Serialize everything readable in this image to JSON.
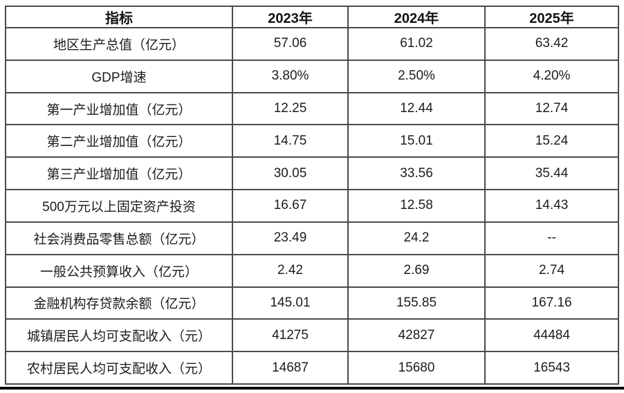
{
  "table": {
    "columns": [
      "指标",
      "2023年",
      "2024年",
      "2025年"
    ],
    "rows": [
      {
        "indicator": "地区生产总值（亿元）",
        "values": [
          "57.06",
          "61.02",
          "63.42"
        ]
      },
      {
        "indicator": "GDP增速",
        "values": [
          "3.80%",
          "2.50%",
          "4.20%"
        ]
      },
      {
        "indicator": "第一产业增加值（亿元）",
        "values": [
          "12.25",
          "12.44",
          "12.74"
        ]
      },
      {
        "indicator": "第二产业增加值（亿元）",
        "values": [
          "14.75",
          "15.01",
          "15.24"
        ]
      },
      {
        "indicator": "第三产业增加值（亿元）",
        "values": [
          "30.05",
          "33.56",
          "35.44"
        ]
      },
      {
        "indicator": "500万元以上固定资产投资",
        "values": [
          "16.67",
          "12.58",
          "14.43"
        ]
      },
      {
        "indicator": "社会消费品零售总额（亿元）",
        "values": [
          "23.49",
          "24.2",
          "--"
        ]
      },
      {
        "indicator": "一般公共预算收入（亿元）",
        "values": [
          "2.42",
          "2.69",
          "2.74"
        ]
      },
      {
        "indicator": "金融机构存贷款余额（亿元）",
        "values": [
          "145.01",
          "155.85",
          "167.16"
        ]
      },
      {
        "indicator": "城镇居民人均可支配收入（元）",
        "values": [
          "41275",
          "42827",
          "44484"
        ]
      },
      {
        "indicator": "农村居民人均可支配收入（元）",
        "values": [
          "14687",
          "15680",
          "16543"
        ]
      }
    ]
  },
  "chart_data": {
    "type": "table",
    "title": "",
    "columns": [
      "指标",
      "2023年",
      "2024年",
      "2025年"
    ],
    "rows": [
      [
        "地区生产总值（亿元）",
        57.06,
        61.02,
        63.42
      ],
      [
        "GDP增速",
        "3.80%",
        "2.50%",
        "4.20%"
      ],
      [
        "第一产业增加值（亿元）",
        12.25,
        12.44,
        12.74
      ],
      [
        "第二产业增加值（亿元）",
        14.75,
        15.01,
        15.24
      ],
      [
        "第三产业增加值（亿元）",
        30.05,
        33.56,
        35.44
      ],
      [
        "500万元以上固定资产投资",
        16.67,
        12.58,
        14.43
      ],
      [
        "社会消费品零售总额（亿元）",
        23.49,
        24.2,
        "--"
      ],
      [
        "一般公共预算收入（亿元）",
        2.42,
        2.69,
        2.74
      ],
      [
        "金融机构存贷款余额（亿元）",
        145.01,
        155.85,
        167.16
      ],
      [
        "城镇居民人均可支配收入（元）",
        41275,
        42827,
        44484
      ],
      [
        "农村居民人均可支配收入（元）",
        14687,
        15680,
        16543
      ]
    ]
  },
  "colors": {
    "border": "#4a4a4a",
    "text": "#1c1c1c",
    "bottom_rule": "#0a0a0a",
    "background": "#ffffff"
  }
}
